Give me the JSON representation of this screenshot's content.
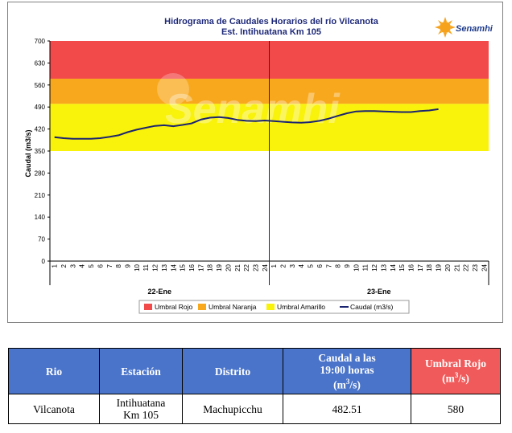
{
  "chart_data": {
    "type": "line",
    "title": "Hidrograma de Caudales Horarios del río Vilcanota",
    "subtitle": "Est. Intihuatana Km 105",
    "brand": "Senamhi",
    "ylabel": "Caudal  (m3/s)",
    "ylim": [
      0,
      700
    ],
    "yticks": [
      "0",
      "70",
      "140",
      "210",
      "280",
      "350",
      "420",
      "490",
      "560",
      "630",
      "700"
    ],
    "hour_labels": [
      "1",
      "2",
      "3",
      "4",
      "5",
      "6",
      "7",
      "8",
      "9",
      "10",
      "11",
      "12",
      "13",
      "14",
      "15",
      "16",
      "17",
      "18",
      "19",
      "20",
      "21",
      "22",
      "23",
      "24"
    ],
    "days": [
      "22-Ene",
      "23-Ene"
    ],
    "bands": [
      {
        "name": "Umbral Rojo",
        "from": 580,
        "to": 700,
        "color": "#f24a4a"
      },
      {
        "name": "Umbral Naranja",
        "from": 500,
        "to": 580,
        "color": "#f8a81c"
      },
      {
        "name": "Umbral Amarillo",
        "from": 350,
        "to": 500,
        "color": "#f9f20a"
      }
    ],
    "series": [
      {
        "name": "Caudal (m3/s)",
        "color": "#1b2470",
        "day1": [
          394,
          391,
          389,
          389,
          389,
          391,
          395,
          400,
          410,
          418,
          424,
          430,
          432,
          429,
          433,
          438,
          450,
          456,
          458,
          455,
          449,
          446,
          445,
          447
        ],
        "day2": [
          445,
          443,
          441,
          440,
          442,
          446,
          453,
          462,
          470,
          476,
          477,
          477,
          476,
          475,
          474,
          474,
          477,
          479,
          483
        ]
      }
    ],
    "legend": [
      "Umbral Rojo",
      "Umbral Naranja",
      "Umbral Amarillo",
      "Caudal (m3/s)"
    ],
    "legend_position": "bottom"
  },
  "table": {
    "headers": {
      "rio": "Rio",
      "estacion": "Estación",
      "distrito": "Distrito",
      "caudal_line1": "Caudal a las",
      "caudal_line2": "19:00 horas",
      "caudal_line3_base": "(m",
      "caudal_line3_sup": "3",
      "caudal_line3_end": "/s)",
      "umbral_line1": "Umbral Rojo",
      "umbral_line2_base": "(m",
      "umbral_line2_sup": "3",
      "umbral_line2_end": "/s)"
    },
    "row": {
      "rio": "Vilcanota",
      "estacion_line1": "Intihuatana",
      "estacion_line2": "Km 105",
      "distrito": "Machupicchu",
      "caudal": "482.51",
      "umbral": "580"
    }
  }
}
